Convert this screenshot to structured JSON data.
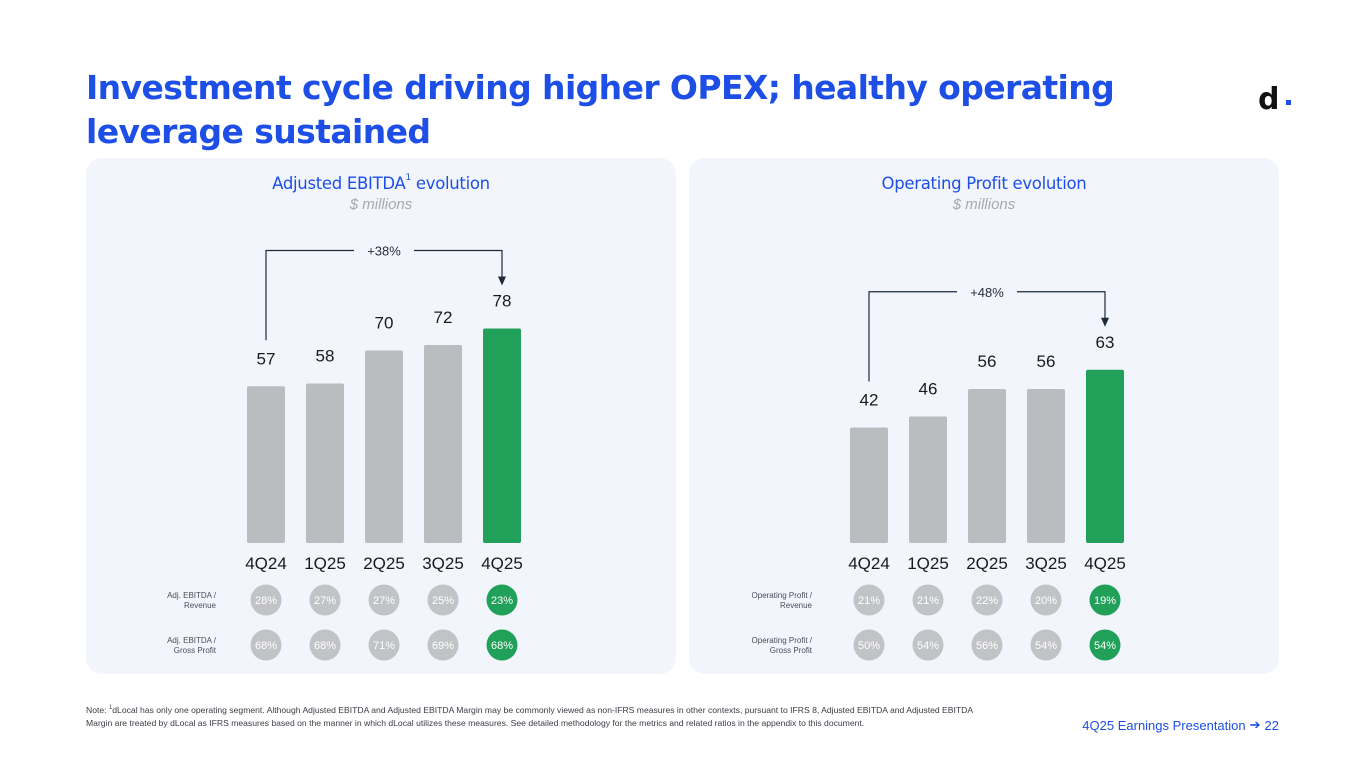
{
  "slide": {
    "title": "Investment cycle driving higher OPEX; healthy operating leverage sustained",
    "logo": {
      "letter": "d",
      "icon": "dlocal-logo-icon"
    },
    "footnote": {
      "prefix": "Note: ",
      "marker": "1",
      "text": "dLocal has only one operating segment. Although Adjusted EBITDA and Adjusted EBITDA Margin may be commonly viewed as non-IFRS measures in other contexts, pursuant to IFRS 8, Adjusted EBITDA and Adjusted EBITDA Margin are treated by dLocal as IFRS measures based on the manner in which dLocal utilizes these measures. See detailed methodology for the metrics and related ratios in the appendix to this document."
    },
    "footer": {
      "label": "4Q25 Earnings Presentation",
      "arrow_icon": "arrow-right-icon",
      "page": "22"
    },
    "colors": {
      "accent": "#1d4fe6",
      "bar_gray": "#bbbcbf",
      "bar_highlight": "#21a05a",
      "circle_gray": "#c2c3c6",
      "circle_highlight": "#21a05a"
    }
  },
  "chart_data": [
    {
      "type": "bar",
      "title": "Adjusted EBITDA",
      "title_sup": "1",
      "title_suffix": " evolution",
      "subtitle": "$ millions",
      "categories": [
        "4Q24",
        "1Q25",
        "2Q25",
        "3Q25",
        "4Q25"
      ],
      "values": [
        57,
        58,
        70,
        72,
        78
      ],
      "highlight_index": 4,
      "ylim": [
        0,
        80
      ],
      "growth": {
        "label": "+38%",
        "from": "4Q24",
        "to": "4Q25"
      },
      "ratios": [
        {
          "label_line1": "Adj. EBITDA /",
          "label_line2": "Revenue",
          "values": [
            "28%",
            "27%",
            "27%",
            "25%",
            "23%"
          ]
        },
        {
          "label_line1": "Adj. EBITDA /",
          "label_line2": "Gross Profit",
          "values": [
            "68%",
            "68%",
            "71%",
            "69%",
            "68%"
          ]
        }
      ]
    },
    {
      "type": "bar",
      "title": "Operating Profit",
      "title_sup": "",
      "title_suffix": " evolution",
      "subtitle": "$ millions",
      "categories": [
        "4Q24",
        "1Q25",
        "2Q25",
        "3Q25",
        "4Q25"
      ],
      "values": [
        42,
        46,
        56,
        56,
        63
      ],
      "highlight_index": 4,
      "ylim": [
        0,
        80
      ],
      "growth": {
        "label": "+48%",
        "from": "4Q24",
        "to": "4Q25"
      },
      "ratios": [
        {
          "label_line1": "Operating Profit /",
          "label_line2": "Revenue",
          "values": [
            "21%",
            "21%",
            "22%",
            "20%",
            "19%"
          ]
        },
        {
          "label_line1": "Operating Profit  /",
          "label_line2": "Gross Profit",
          "values": [
            "50%",
            "54%",
            "56%",
            "54%",
            "54%"
          ]
        }
      ]
    }
  ]
}
